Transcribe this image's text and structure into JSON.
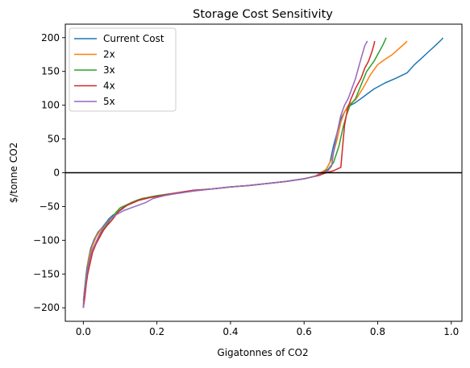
{
  "chart_data": {
    "type": "line",
    "title": "Storage Cost Sensitivity",
    "xlabel": "Gigatonnes of CO2",
    "ylabel": "$/tonne CO2",
    "xlim": [
      -0.049,
      1.029
    ],
    "ylim": [
      -220,
      220
    ],
    "xticks": [
      0.0,
      0.2,
      0.4,
      0.6,
      0.8,
      1.0
    ],
    "xtick_labels": [
      "0.0",
      "0.2",
      "0.4",
      "0.6",
      "0.8",
      "1.0"
    ],
    "yticks": [
      -200,
      -150,
      -100,
      -50,
      0,
      50,
      100,
      150,
      200
    ],
    "ytick_labels": [
      "−200",
      "−150",
      "−100",
      "−50",
      "0",
      "50",
      "100",
      "150",
      "200"
    ],
    "grid": false,
    "legend_position": "upper-left",
    "reference_line": {
      "y": 0,
      "color": "#000000"
    },
    "series": [
      {
        "name": "Current Cost",
        "color": "#1f77b4",
        "points": [
          [
            0.0,
            -200
          ],
          [
            0.002,
            -180
          ],
          [
            0.006,
            -160
          ],
          [
            0.01,
            -140
          ],
          [
            0.015,
            -125
          ],
          [
            0.02,
            -112
          ],
          [
            0.03,
            -98
          ],
          [
            0.04,
            -88
          ],
          [
            0.05,
            -82
          ],
          [
            0.06,
            -75
          ],
          [
            0.07,
            -68
          ],
          [
            0.08,
            -63
          ],
          [
            0.09,
            -60
          ],
          [
            0.1,
            -56
          ],
          [
            0.11,
            -52
          ],
          [
            0.12,
            -47
          ],
          [
            0.14,
            -42
          ],
          [
            0.16,
            -38
          ],
          [
            0.2,
            -35
          ],
          [
            0.25,
            -31
          ],
          [
            0.3,
            -27
          ],
          [
            0.35,
            -24
          ],
          [
            0.4,
            -21
          ],
          [
            0.45,
            -19
          ],
          [
            0.5,
            -16
          ],
          [
            0.55,
            -13
          ],
          [
            0.6,
            -9
          ],
          [
            0.63,
            -5
          ],
          [
            0.65,
            0
          ],
          [
            0.66,
            5
          ],
          [
            0.67,
            15
          ],
          [
            0.68,
            40
          ],
          [
            0.69,
            60
          ],
          [
            0.7,
            80
          ],
          [
            0.71,
            90
          ],
          [
            0.72,
            98
          ],
          [
            0.74,
            104
          ],
          [
            0.76,
            112
          ],
          [
            0.79,
            124
          ],
          [
            0.82,
            133
          ],
          [
            0.85,
            140
          ],
          [
            0.88,
            148
          ],
          [
            0.9,
            160
          ],
          [
            0.92,
            170
          ],
          [
            0.94,
            180
          ],
          [
            0.96,
            190
          ],
          [
            0.975,
            198
          ],
          [
            0.977,
            200
          ]
        ]
      },
      {
        "name": "2x",
        "color": "#ff7f0e",
        "points": [
          [
            0.0,
            -195
          ],
          [
            0.003,
            -175
          ],
          [
            0.008,
            -155
          ],
          [
            0.012,
            -135
          ],
          [
            0.018,
            -120
          ],
          [
            0.025,
            -108
          ],
          [
            0.035,
            -95
          ],
          [
            0.045,
            -86
          ],
          [
            0.055,
            -80
          ],
          [
            0.065,
            -73
          ],
          [
            0.08,
            -65
          ],
          [
            0.09,
            -60
          ],
          [
            0.1,
            -55
          ],
          [
            0.11,
            -51
          ],
          [
            0.13,
            -44
          ],
          [
            0.16,
            -38
          ],
          [
            0.2,
            -35
          ],
          [
            0.25,
            -31
          ],
          [
            0.3,
            -27
          ],
          [
            0.35,
            -24
          ],
          [
            0.4,
            -21
          ],
          [
            0.45,
            -19
          ],
          [
            0.5,
            -16
          ],
          [
            0.55,
            -13
          ],
          [
            0.6,
            -9
          ],
          [
            0.63,
            -5
          ],
          [
            0.645,
            0
          ],
          [
            0.66,
            5
          ],
          [
            0.675,
            20
          ],
          [
            0.69,
            50
          ],
          [
            0.7,
            75
          ],
          [
            0.71,
            90
          ],
          [
            0.72,
            100
          ],
          [
            0.74,
            108
          ],
          [
            0.76,
            125
          ],
          [
            0.78,
            145
          ],
          [
            0.8,
            160
          ],
          [
            0.82,
            168
          ],
          [
            0.84,
            175
          ],
          [
            0.86,
            185
          ],
          [
            0.875,
            192
          ],
          [
            0.88,
            195
          ]
        ]
      },
      {
        "name": "3x",
        "color": "#2ca02c",
        "points": [
          [
            0.0,
            -190
          ],
          [
            0.004,
            -170
          ],
          [
            0.008,
            -150
          ],
          [
            0.015,
            -132
          ],
          [
            0.022,
            -118
          ],
          [
            0.03,
            -108
          ],
          [
            0.04,
            -98
          ],
          [
            0.05,
            -88
          ],
          [
            0.06,
            -80
          ],
          [
            0.07,
            -72
          ],
          [
            0.08,
            -65
          ],
          [
            0.09,
            -58
          ],
          [
            0.1,
            -52
          ],
          [
            0.12,
            -47
          ],
          [
            0.15,
            -40
          ],
          [
            0.18,
            -36
          ],
          [
            0.2,
            -34
          ],
          [
            0.25,
            -30
          ],
          [
            0.3,
            -26
          ],
          [
            0.35,
            -24
          ],
          [
            0.4,
            -21
          ],
          [
            0.45,
            -19
          ],
          [
            0.5,
            -16
          ],
          [
            0.55,
            -13
          ],
          [
            0.6,
            -9
          ],
          [
            0.64,
            -4
          ],
          [
            0.65,
            0
          ],
          [
            0.665,
            5
          ],
          [
            0.68,
            15
          ],
          [
            0.695,
            40
          ],
          [
            0.705,
            65
          ],
          [
            0.715,
            85
          ],
          [
            0.725,
            100
          ],
          [
            0.74,
            110
          ],
          [
            0.755,
            130
          ],
          [
            0.77,
            150
          ],
          [
            0.79,
            165
          ],
          [
            0.805,
            180
          ],
          [
            0.815,
            190
          ],
          [
            0.823,
            200
          ]
        ]
      },
      {
        "name": "4x",
        "color": "#d62728",
        "points": [
          [
            0.0,
            -200
          ],
          [
            0.004,
            -185
          ],
          [
            0.008,
            -165
          ],
          [
            0.012,
            -150
          ],
          [
            0.018,
            -135
          ],
          [
            0.025,
            -118
          ],
          [
            0.035,
            -105
          ],
          [
            0.045,
            -95
          ],
          [
            0.055,
            -85
          ],
          [
            0.065,
            -78
          ],
          [
            0.075,
            -72
          ],
          [
            0.085,
            -65
          ],
          [
            0.095,
            -58
          ],
          [
            0.105,
            -53
          ],
          [
            0.12,
            -48
          ],
          [
            0.15,
            -41
          ],
          [
            0.18,
            -37
          ],
          [
            0.2,
            -35
          ],
          [
            0.25,
            -30
          ],
          [
            0.3,
            -26
          ],
          [
            0.35,
            -24
          ],
          [
            0.4,
            -21
          ],
          [
            0.45,
            -19
          ],
          [
            0.5,
            -16
          ],
          [
            0.55,
            -13
          ],
          [
            0.6,
            -9
          ],
          [
            0.64,
            -4
          ],
          [
            0.66,
            0
          ],
          [
            0.68,
            3
          ],
          [
            0.7,
            8
          ],
          [
            0.705,
            40
          ],
          [
            0.71,
            70
          ],
          [
            0.718,
            95
          ],
          [
            0.728,
            110
          ],
          [
            0.74,
            125
          ],
          [
            0.755,
            140
          ],
          [
            0.765,
            155
          ],
          [
            0.775,
            165
          ],
          [
            0.785,
            180
          ],
          [
            0.79,
            190
          ],
          [
            0.792,
            195
          ]
        ]
      },
      {
        "name": "5x",
        "color": "#9467bd",
        "points": [
          [
            0.0,
            -200
          ],
          [
            0.002,
            -180
          ],
          [
            0.006,
            -165
          ],
          [
            0.01,
            -148
          ],
          [
            0.016,
            -132
          ],
          [
            0.022,
            -118
          ],
          [
            0.03,
            -108
          ],
          [
            0.04,
            -96
          ],
          [
            0.05,
            -85
          ],
          [
            0.06,
            -76
          ],
          [
            0.075,
            -68
          ],
          [
            0.09,
            -62
          ],
          [
            0.11,
            -56
          ],
          [
            0.13,
            -52
          ],
          [
            0.15,
            -48
          ],
          [
            0.17,
            -44
          ],
          [
            0.19,
            -38
          ],
          [
            0.22,
            -34
          ],
          [
            0.25,
            -31
          ],
          [
            0.3,
            -27
          ],
          [
            0.35,
            -24
          ],
          [
            0.4,
            -21
          ],
          [
            0.45,
            -19
          ],
          [
            0.5,
            -16
          ],
          [
            0.55,
            -13
          ],
          [
            0.6,
            -9
          ],
          [
            0.63,
            -5
          ],
          [
            0.65,
            0
          ],
          [
            0.665,
            3
          ],
          [
            0.675,
            10
          ],
          [
            0.68,
            30
          ],
          [
            0.69,
            60
          ],
          [
            0.7,
            85
          ],
          [
            0.71,
            100
          ],
          [
            0.72,
            110
          ],
          [
            0.73,
            125
          ],
          [
            0.74,
            140
          ],
          [
            0.75,
            160
          ],
          [
            0.758,
            175
          ],
          [
            0.765,
            188
          ],
          [
            0.772,
            195
          ]
        ]
      }
    ]
  }
}
